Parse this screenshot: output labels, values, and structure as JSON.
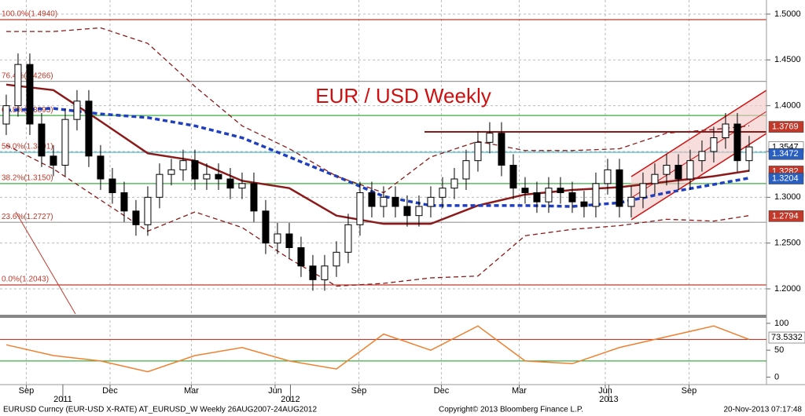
{
  "chart_data": {
    "type": "candlestick",
    "title": "EUR / USD Weekly",
    "open": [
      1.38,
      1.4,
      1.445,
      1.38,
      1.345,
      1.335,
      1.385,
      1.405,
      1.345,
      1.32,
      1.305,
      1.285,
      1.27,
      1.3,
      1.325,
      1.33,
      1.34,
      1.32,
      1.325,
      1.32,
      1.31,
      1.315,
      1.285,
      1.25,
      1.26,
      1.245,
      1.225,
      1.21,
      1.225,
      1.24,
      1.27,
      1.305,
      1.29,
      1.3,
      1.29,
      1.28,
      1.29,
      1.3,
      1.31,
      1.32,
      1.34,
      1.36,
      1.37,
      1.335,
      1.31,
      1.305,
      1.295,
      1.31,
      1.305,
      1.295,
      1.29,
      1.315,
      1.33,
      1.29,
      1.3,
      1.315,
      1.325,
      1.335,
      1.32,
      1.34,
      1.35,
      1.365,
      1.38,
      1.34
    ],
    "high": [
      1.412,
      1.457,
      1.457,
      1.392,
      1.357,
      1.397,
      1.417,
      1.417,
      1.357,
      1.332,
      1.317,
      1.297,
      1.312,
      1.337,
      1.342,
      1.352,
      1.352,
      1.337,
      1.337,
      1.332,
      1.327,
      1.327,
      1.297,
      1.272,
      1.272,
      1.257,
      1.237,
      1.237,
      1.252,
      1.282,
      1.317,
      1.317,
      1.312,
      1.312,
      1.302,
      1.302,
      1.312,
      1.322,
      1.332,
      1.352,
      1.372,
      1.382,
      1.382,
      1.347,
      1.322,
      1.317,
      1.322,
      1.322,
      1.317,
      1.307,
      1.327,
      1.342,
      1.342,
      1.312,
      1.327,
      1.337,
      1.347,
      1.347,
      1.352,
      1.362,
      1.377,
      1.392,
      1.392,
      1.367
    ],
    "low": [
      1.368,
      1.388,
      1.368,
      1.333,
      1.323,
      1.323,
      1.373,
      1.333,
      1.308,
      1.293,
      1.273,
      1.258,
      1.258,
      1.288,
      1.313,
      1.318,
      1.308,
      1.308,
      1.308,
      1.298,
      1.298,
      1.273,
      1.238,
      1.238,
      1.233,
      1.213,
      1.198,
      1.198,
      1.213,
      1.228,
      1.258,
      1.278,
      1.278,
      1.278,
      1.268,
      1.268,
      1.278,
      1.288,
      1.298,
      1.308,
      1.328,
      1.348,
      1.323,
      1.298,
      1.293,
      1.283,
      1.283,
      1.293,
      1.283,
      1.278,
      1.278,
      1.303,
      1.278,
      1.278,
      1.288,
      1.303,
      1.313,
      1.308,
      1.308,
      1.328,
      1.338,
      1.353,
      1.328,
      1.328
    ],
    "close": [
      1.4,
      1.445,
      1.38,
      1.345,
      1.335,
      1.385,
      1.405,
      1.345,
      1.32,
      1.305,
      1.285,
      1.27,
      1.3,
      1.325,
      1.33,
      1.34,
      1.32,
      1.325,
      1.32,
      1.31,
      1.315,
      1.285,
      1.25,
      1.26,
      1.245,
      1.225,
      1.21,
      1.225,
      1.24,
      1.27,
      1.305,
      1.29,
      1.3,
      1.29,
      1.28,
      1.29,
      1.3,
      1.31,
      1.32,
      1.34,
      1.36,
      1.37,
      1.335,
      1.31,
      1.305,
      1.295,
      1.31,
      1.305,
      1.295,
      1.29,
      1.315,
      1.33,
      1.29,
      1.3,
      1.315,
      1.325,
      1.335,
      1.32,
      1.34,
      1.35,
      1.365,
      1.38,
      1.34,
      1.355
    ],
    "xlim": [
      -0.53,
      64.47
    ],
    "ylim": [
      1.1726,
      1.5154
    ],
    "yticks": [
      {
        "value": 1.2,
        "label": "1.2000"
      },
      {
        "value": 1.25,
        "label": "1.2500"
      },
      {
        "value": 1.3,
        "label": "1.3000"
      },
      {
        "value": 1.35,
        "label": "1.3500"
      },
      {
        "value": 1.4,
        "label": "1.4000"
      },
      {
        "value": 1.45,
        "label": "1.4500"
      },
      {
        "value": 1.5,
        "label": "1.5000"
      }
    ],
    "xticks": [
      {
        "value": 1.7,
        "label": "Sep"
      },
      {
        "value": 8.8,
        "label": "Dec"
      },
      {
        "value": 15.7,
        "label": "Mar"
      },
      {
        "value": 22.8,
        "label": "Jun"
      },
      {
        "value": 29.9,
        "label": "Sep"
      },
      {
        "value": 36.9,
        "label": "Dec"
      },
      {
        "value": 43.5,
        "label": "Mar"
      },
      {
        "value": 50.8,
        "label": "Jun"
      },
      {
        "value": 57.9,
        "label": "Sep"
      }
    ],
    "year_ticks": [
      {
        "value": 4.8,
        "label": "2011"
      },
      {
        "value": 24.1,
        "label": "2012"
      },
      {
        "value": 51.1,
        "label": "2013"
      }
    ],
    "grid": true,
    "lines": [
      {
        "color": "#8b1a1a",
        "dash": false,
        "width": 2.5,
        "x": [
          0,
          4,
          8,
          12,
          16,
          20,
          24,
          28,
          32,
          36,
          40,
          44,
          48,
          52,
          56,
          60,
          63
        ],
        "values": [
          1.423,
          1.417,
          1.383,
          1.348,
          1.34,
          1.318,
          1.31,
          1.28,
          1.271,
          1.271,
          1.291,
          1.303,
          1.308,
          1.311,
          1.317,
          1.323,
          1.329
        ]
      },
      {
        "color": "#1f3fbf",
        "dash": true,
        "width": 3.5,
        "x": [
          0,
          4,
          8,
          12,
          16,
          20,
          24,
          28,
          32,
          36,
          40,
          44,
          48,
          52,
          56,
          60,
          63
        ],
        "values": [
          1.395,
          1.397,
          1.391,
          1.387,
          1.378,
          1.365,
          1.344,
          1.323,
          1.301,
          1.291,
          1.291,
          1.291,
          1.29,
          1.294,
          1.305,
          1.314,
          1.321
        ]
      },
      {
        "color": "#8b1a1a",
        "dash": true,
        "width": 1.3,
        "x": [
          0,
          4,
          8,
          12,
          16,
          20,
          24,
          28,
          32,
          36,
          40,
          44,
          48,
          52,
          56,
          60,
          63
        ],
        "values": [
          1.481,
          1.481,
          1.485,
          1.468,
          1.421,
          1.378,
          1.353,
          1.323,
          1.305,
          1.344,
          1.361,
          1.351,
          1.351,
          1.353,
          1.37,
          1.374,
          1.378
        ]
      },
      {
        "color": "#8b1a1a",
        "dash": true,
        "width": 1.3,
        "x": [
          0,
          4,
          8,
          12,
          16,
          20,
          24,
          28,
          32,
          36,
          40,
          44,
          48,
          52,
          56,
          60,
          63
        ],
        "values": [
          1.357,
          1.331,
          1.297,
          1.263,
          1.284,
          1.267,
          1.233,
          1.203,
          1.206,
          1.212,
          1.214,
          1.258,
          1.265,
          1.269,
          1.276,
          1.274,
          1.28
        ]
      }
    ],
    "fib_levels": [
      {
        "value": 1.494,
        "label": "100.0%(1.4940)",
        "color": "#c0392b"
      },
      {
        "value": 1.4266,
        "label": "76.4%(1.4266)",
        "color": "#999999"
      },
      {
        "value": 1.3893,
        "label": "61.8%(1.3893)",
        "color": "#3cb043"
      },
      {
        "value": 1.3491,
        "label": "50.0%(1.3491)",
        "color": "#3fb8c8"
      },
      {
        "value": 1.315,
        "label": "38.2%(1.3150)",
        "color": "#3cb043"
      },
      {
        "value": 1.2727,
        "label": "23.6%(1.2727)",
        "color": "#999999"
      },
      {
        "value": 1.2043,
        "label": "0.0%(1.2043)",
        "color": "#c0392b"
      }
    ],
    "price_tags": [
      {
        "value": 1.3769,
        "bg": "#c0392b",
        "fg": "#ffffff"
      },
      {
        "value": 1.3547,
        "bg": "#ffffff",
        "fg": "#000000"
      },
      {
        "value": 1.3472,
        "bg": "#2b5fbf",
        "fg": "#ffffff"
      },
      {
        "value": 1.3282,
        "bg": "#c0392b",
        "fg": "#ffffff"
      },
      {
        "value": 1.3204,
        "bg": "#2b5fbf",
        "fg": "#ffffff"
      },
      {
        "value": 1.2794,
        "bg": "#c0392b",
        "fg": "#ffffff"
      }
    ],
    "oscillator": {
      "color": "#f08030",
      "x": [
        0,
        4,
        8,
        12,
        16,
        20,
        24,
        28,
        32,
        36,
        40,
        44,
        48,
        52,
        56,
        60,
        63
      ],
      "values": [
        60,
        40,
        30,
        10,
        40,
        55,
        30,
        15,
        80,
        50,
        95,
        30,
        25,
        55,
        75,
        95,
        70
      ],
      "ylim": [
        -14,
        113
      ],
      "yticks": [
        0,
        50,
        100
      ],
      "levels": [
        {
          "value": 70,
          "color": "#c0392b"
        },
        {
          "value": 30,
          "color": "#3cb043"
        }
      ],
      "last": 73.5332
    },
    "footer_left": "EURUSD Curncy (EUR-USD X-RATE) AT_EURUSD_W  Weekly 26AUG2007-24AUG2012",
    "footer_center": "Copyright© 2013 Bloomberg Finance L.P.",
    "footer_right": "20-Nov-2013 07:17:48"
  }
}
